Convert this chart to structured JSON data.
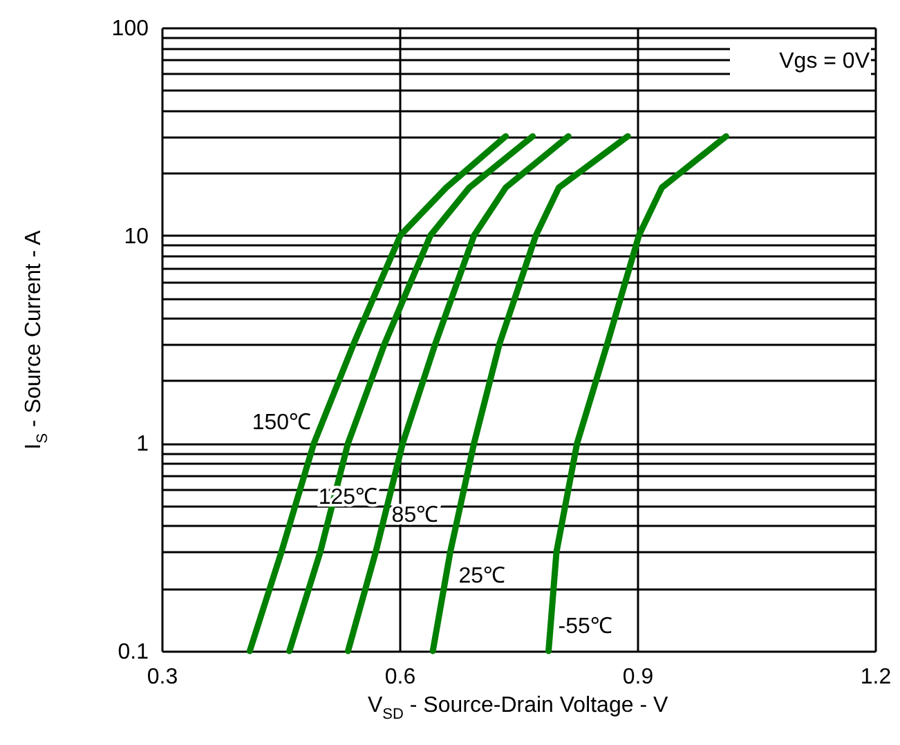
{
  "chart_data": {
    "type": "line",
    "xlabel": "V$_{SD}$ - Source-Drain Voltage - V",
    "ylabel": "I$_{S}$ - Source Current - A",
    "annotations": [
      "Vgs = 0V"
    ],
    "log": "y",
    "grid": true,
    "legend": false,
    "line_style": "solid",
    "marker": "none",
    "xlim": [
      0.3,
      1.2
    ],
    "xticks": [
      0.3,
      0.6,
      0.9,
      1.2
    ],
    "ylim": [
      0.1,
      100
    ],
    "yticks": [
      0.1,
      {
        "value": 0.2,
        "label": null
      },
      {
        "value": 0.3,
        "label": null
      },
      {
        "value": 0.4,
        "label": null
      },
      {
        "value": 0.5,
        "label": null
      },
      {
        "value": 0.6,
        "label": null
      },
      {
        "value": 0.7,
        "label": null
      },
      {
        "value": 0.8,
        "label": null
      },
      {
        "value": 0.9,
        "label": null
      },
      1,
      {
        "value": 2,
        "label": null
      },
      {
        "value": 3,
        "label": null
      },
      {
        "value": 4,
        "label": null
      },
      {
        "value": 5,
        "label": null
      },
      {
        "value": 6,
        "label": null
      },
      {
        "value": 7,
        "label": null
      },
      {
        "value": 8,
        "label": null
      },
      {
        "value": 9,
        "label": null
      },
      10,
      {
        "value": 20,
        "label": null
      },
      {
        "value": 30,
        "label": null
      },
      {
        "value": 40,
        "label": null
      },
      {
        "value": 50,
        "label": null
      },
      {
        "value": 60,
        "label": null
      },
      {
        "value": 70,
        "label": null
      },
      {
        "value": 80,
        "label": null
      },
      {
        "value": 90,
        "label": null
      },
      100
    ],
    "series": [
      {
        "name": "150℃",
        "color": "#008000",
        "x": [
          0.411,
          0.451,
          0.492,
          0.542,
          0.601,
          0.659,
          0.734
        ],
        "values": [
          0.1,
          0.3,
          1,
          3,
          10,
          17,
          30
        ]
      },
      {
        "name": "125℃",
        "color": "#008000",
        "x": [
          0.461,
          0.5,
          0.535,
          0.581,
          0.639,
          0.688,
          0.768
        ],
        "values": [
          0.1,
          0.3,
          1,
          3,
          10,
          17,
          30
        ]
      },
      {
        "name": "85℃",
        "color": "#008000",
        "x": [
          0.535,
          0.57,
          0.604,
          0.645,
          0.694,
          0.734,
          0.813
        ],
        "values": [
          0.1,
          0.3,
          1,
          3,
          10,
          17,
          30
        ]
      },
      {
        "name": "25℃",
        "color": "#008000",
        "x": [
          0.642,
          0.664,
          0.694,
          0.726,
          0.772,
          0.801,
          0.888
        ],
        "values": [
          0.1,
          0.3,
          1,
          3,
          10,
          17,
          30
        ]
      },
      {
        "name": "-55℃",
        "color": "#008000",
        "x": [
          0.788,
          0.798,
          0.824,
          0.862,
          0.902,
          0.931,
          1.012
        ],
        "values": [
          0.1,
          0.3,
          1,
          3,
          10,
          17,
          30
        ]
      }
    ]
  }
}
